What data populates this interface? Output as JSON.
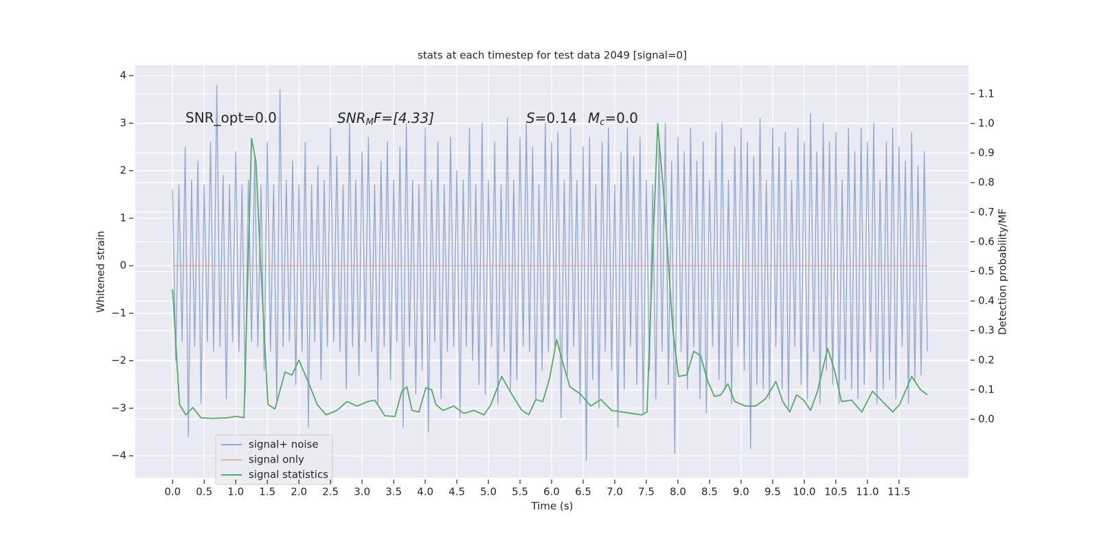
{
  "chart_data": {
    "type": "line",
    "title": "stats at each timestep for test data 2049 [signal=0]",
    "xlabel": "Time (s)",
    "ylabel": "Whitened strain",
    "y2label": "Detection probability/MF",
    "xlim": [
      -0.59,
      12.6
    ],
    "ylim": [
      -4.46,
      4.22
    ],
    "y2lim": [
      -0.197,
      1.197
    ],
    "xticks": [
      {
        "value": 0,
        "label": "0.0"
      },
      0.5,
      {
        "value": 1,
        "label": "1.0"
      },
      1.5,
      {
        "value": 2,
        "label": "2.0"
      },
      2.5,
      {
        "value": 3,
        "label": "3.0"
      },
      3.5,
      {
        "value": 4,
        "label": "4.0"
      },
      4.5,
      {
        "value": 5,
        "label": "5.0"
      },
      5.5,
      {
        "value": 6,
        "label": "6.0"
      },
      6.5,
      {
        "value": 7,
        "label": "7.0"
      },
      7.5,
      {
        "value": 8,
        "label": "8.0"
      },
      8.5,
      {
        "value": 9,
        "label": "9.0"
      },
      9.5,
      {
        "value": 10,
        "label": "10.0"
      },
      10.5,
      {
        "value": 11,
        "label": "11.0"
      },
      11.5
    ],
    "yticks": [
      {
        "value": -4,
        "label": "−4"
      },
      {
        "value": -3,
        "label": "−3"
      },
      {
        "value": -2,
        "label": "−2"
      },
      {
        "value": -1,
        "label": "−1"
      },
      0,
      1,
      2,
      3,
      4
    ],
    "y2ticks": [
      {
        "value": 0,
        "label": "0.0"
      },
      0.1,
      0.2,
      0.3,
      0.4,
      0.5,
      0.6,
      0.7,
      0.8,
      0.9,
      {
        "value": 1,
        "label": "1.0"
      },
      1.1
    ],
    "grid": true,
    "legend": "lower left",
    "annotations": [
      [
        "SNR_opt=0.0"
      ],
      [
        "SNR",
        "M",
        "F=[4.33]"
      ],
      [
        "S",
        "=0.14",
        "M",
        "c",
        "=0.0"
      ]
    ],
    "series": [
      {
        "name": "signal+ noise",
        "color": "#4c72b0",
        "alpha": 0.55,
        "x": [
          0,
          0.05,
          0.1,
          0.15,
          0.2,
          0.25,
          0.3,
          0.35,
          0.4,
          0.45,
          0.5,
          0.55,
          0.6,
          0.65,
          0.7,
          0.75,
          0.8,
          0.85,
          0.9,
          0.95,
          1,
          1.05,
          1.1,
          1.15,
          1.2,
          1.25,
          1.3,
          1.35,
          1.4,
          1.45,
          1.5,
          1.55,
          1.6,
          1.65,
          1.7,
          1.75,
          1.8,
          1.85,
          1.9,
          1.95,
          2,
          2.05,
          2.1,
          2.15,
          2.2,
          2.25,
          2.3,
          2.35,
          2.4,
          2.45,
          2.5,
          2.55,
          2.6,
          2.65,
          2.7,
          2.75,
          2.8,
          2.85,
          2.9,
          2.95,
          3,
          3.05,
          3.1,
          3.15,
          3.2,
          3.25,
          3.3,
          3.35,
          3.4,
          3.45,
          3.5,
          3.55,
          3.6,
          3.65,
          3.7,
          3.75,
          3.8,
          3.85,
          3.9,
          3.95,
          4,
          4.05,
          4.1,
          4.15,
          4.2,
          4.25,
          4.3,
          4.35,
          4.4,
          4.45,
          4.5,
          4.55,
          4.6,
          4.65,
          4.7,
          4.75,
          4.8,
          4.85,
          4.9,
          4.95,
          5,
          5.05,
          5.1,
          5.15,
          5.2,
          5.25,
          5.3,
          5.35,
          5.4,
          5.45,
          5.5,
          5.55,
          5.6,
          5.65,
          5.7,
          5.75,
          5.8,
          5.85,
          5.9,
          5.95,
          6,
          6.05,
          6.1,
          6.15,
          6.2,
          6.25,
          6.3,
          6.35,
          6.4,
          6.45,
          6.5,
          6.55,
          6.6,
          6.65,
          6.7,
          6.75,
          6.8,
          6.85,
          6.9,
          6.95,
          7,
          7.05,
          7.1,
          7.15,
          7.2,
          7.25,
          7.3,
          7.35,
          7.4,
          7.45,
          7.5,
          7.55,
          7.6,
          7.65,
          7.7,
          7.75,
          7.8,
          7.85,
          7.9,
          7.95,
          8,
          8.05,
          8.1,
          8.15,
          8.2,
          8.25,
          8.3,
          8.35,
          8.4,
          8.45,
          8.5,
          8.55,
          8.6,
          8.65,
          8.7,
          8.75,
          8.8,
          8.85,
          8.9,
          8.95,
          9,
          9.05,
          9.1,
          9.15,
          9.2,
          9.25,
          9.3,
          9.35,
          9.4,
          9.45,
          9.5,
          9.55,
          9.6,
          9.65,
          9.7,
          9.75,
          9.8,
          9.85,
          9.9,
          9.95,
          10,
          10.05,
          10.1,
          10.15,
          10.2,
          10.25,
          10.3,
          10.35,
          10.4,
          10.45,
          10.5,
          10.55,
          10.6,
          10.65,
          10.7,
          10.75,
          10.8,
          10.85,
          10.9,
          10.95,
          11,
          11.05,
          11.1,
          11.15,
          11.2,
          11.25,
          11.3,
          11.35,
          11.4,
          11.45,
          11.5,
          11.55,
          11.6,
          11.65,
          11.7,
          11.75,
          11.8,
          11.85,
          11.9,
          11.95
        ],
        "values": [
          1.6,
          -2.0,
          1.7,
          -1.6,
          2.5,
          -3.6,
          1.8,
          -1.7,
          2.2,
          -2.9,
          1.7,
          -1.6,
          2.6,
          -1.8,
          3.8,
          -1.7,
          1.9,
          -2.8,
          1.7,
          -1.6,
          2.4,
          -1.8,
          1.7,
          -2.7,
          1.8,
          -1.6,
          2.3,
          -1.7,
          1.7,
          -2.2,
          2.6,
          -1.8,
          1.7,
          -2.9,
          3.7,
          -1.7,
          1.8,
          -1.6,
          2.2,
          -2.5,
          1.7,
          -1.8,
          2.6,
          -3.4,
          1.7,
          -1.6,
          2.1,
          -2.4,
          1.8,
          -1.7,
          2.9,
          -1.6,
          2.3,
          -1.8,
          1.7,
          -2.6,
          3.0,
          -1.7,
          1.8,
          -2.3,
          2.4,
          -1.6,
          2.7,
          -1.8,
          1.7,
          -2.9,
          2.2,
          -1.7,
          2.6,
          -2.4,
          1.8,
          -1.6,
          2.5,
          -3.4,
          3.0,
          -1.7,
          1.8,
          -2.7,
          1.7,
          -2.2,
          2.9,
          -3.5,
          1.8,
          -1.6,
          2.6,
          -2.8,
          1.7,
          -1.8,
          2.7,
          -1.7,
          2.0,
          -3.2,
          1.8,
          -1.7,
          2.9,
          -2.0,
          1.7,
          -2.5,
          3.0,
          -2.7,
          1.8,
          -1.7,
          2.6,
          -2.9,
          1.7,
          -1.8,
          3.1,
          -2.6,
          1.8,
          -2.4,
          2.7,
          -1.7,
          3.0,
          -1.8,
          2.5,
          -2.8,
          1.7,
          -2.2,
          3.0,
          -1.8,
          2.6,
          -1.7,
          2.8,
          -3.2,
          1.8,
          -2.3,
          2.9,
          -1.7,
          1.8,
          -2.9,
          2.5,
          -4.1,
          2.7,
          -2.4,
          1.7,
          -3.0,
          2.6,
          -1.8,
          2.9,
          -2.2,
          1.7,
          -3.4,
          2.4,
          -2.6,
          2.9,
          -1.7,
          2.3,
          -2.5,
          2.7,
          -3.1,
          1.8,
          -2.2,
          1.7,
          -2.8,
          2.6,
          -1.8,
          3.0,
          -2.5,
          2.2,
          -3.95,
          2.7,
          -1.8,
          2.4,
          -2.6,
          2.9,
          -1.7,
          2.2,
          -2.8,
          2.6,
          -3.1,
          1.8,
          -1.7,
          2.8,
          -2.4,
          3.0,
          -2.6,
          1.8,
          -2.9,
          2.5,
          -1.7,
          2.9,
          -2.2,
          2.6,
          -3.85,
          2.3,
          -2.5,
          3.1,
          -2.6,
          1.8,
          -2.8,
          2.9,
          -1.7,
          2.5,
          -2.6,
          2.8,
          -3.0,
          1.8,
          -1.7,
          2.9,
          -2.5,
          2.6,
          -2.8,
          3.2,
          -1.8,
          2.4,
          -2.9,
          3.0,
          -2.2,
          2.6,
          -2.5,
          2.8,
          -2.9,
          1.8,
          -2.4,
          2.9,
          -2.6,
          2.4,
          -2.8,
          2.9,
          -2.5,
          2.6,
          -1.8,
          3.0,
          -2.9,
          1.8,
          -2.6,
          2.6,
          -2.4,
          2.9,
          -2.8,
          2.5,
          -1.7,
          2.2,
          -2.9,
          2.8,
          -2.4,
          2.1,
          -2.3,
          2.4,
          -1.8
        ]
      },
      {
        "name": "signal only",
        "color": "#dd8452",
        "alpha": 0.55,
        "x": [
          0,
          11.95
        ],
        "values": [
          0,
          0
        ]
      },
      {
        "name": "signal statistics",
        "color": "#55a868",
        "alpha": 1,
        "axis": "y2",
        "x": [
          0,
          0.11,
          0.21,
          0.32,
          0.45,
          0.64,
          0.86,
          1.02,
          1.13,
          1.25,
          1.32,
          1.4,
          1.51,
          1.62,
          1.78,
          1.89,
          2.0,
          2.16,
          2.29,
          2.43,
          2.6,
          2.76,
          2.92,
          3.09,
          3.2,
          3.36,
          3.52,
          3.63,
          3.71,
          3.79,
          3.9,
          4.01,
          4.1,
          4.17,
          4.28,
          4.45,
          4.61,
          4.77,
          4.93,
          5.04,
          5.21,
          5.37,
          5.53,
          5.64,
          5.75,
          5.86,
          5.97,
          6.08,
          6.18,
          6.29,
          6.46,
          6.62,
          6.78,
          6.95,
          7.11,
          7.27,
          7.43,
          7.51,
          7.6,
          7.68,
          7.79,
          7.92,
          8.01,
          8.14,
          8.25,
          8.36,
          8.47,
          8.58,
          8.68,
          8.79,
          8.9,
          9.07,
          9.23,
          9.39,
          9.55,
          9.66,
          9.77,
          9.88,
          9.99,
          10.1,
          10.21,
          10.37,
          10.48,
          10.59,
          10.75,
          10.91,
          11.08,
          11.24,
          11.4,
          11.51,
          11.7,
          11.84,
          11.95
        ],
        "values": [
          0.44,
          0.05,
          0.015,
          0.04,
          0.005,
          0.003,
          0.005,
          0.01,
          0.005,
          0.95,
          0.87,
          0.5,
          0.05,
          0.035,
          0.16,
          0.15,
          0.2,
          0.12,
          0.05,
          0.015,
          0.03,
          0.06,
          0.045,
          0.06,
          0.065,
          0.012,
          0.01,
          0.095,
          0.11,
          0.03,
          0.025,
          0.107,
          0.1,
          0.05,
          0.03,
          0.045,
          0.02,
          0.03,
          0.015,
          0.05,
          0.145,
          0.085,
          0.03,
          0.016,
          0.067,
          0.06,
          0.14,
          0.27,
          0.19,
          0.11,
          0.085,
          0.045,
          0.067,
          0.03,
          0.025,
          0.02,
          0.015,
          0.025,
          0.56,
          1.0,
          0.72,
          0.3,
          0.145,
          0.15,
          0.23,
          0.215,
          0.13,
          0.077,
          0.083,
          0.12,
          0.06,
          0.045,
          0.045,
          0.07,
          0.128,
          0.06,
          0.025,
          0.083,
          0.065,
          0.03,
          0.095,
          0.24,
          0.165,
          0.06,
          0.065,
          0.025,
          0.095,
          0.06,
          0.025,
          0.05,
          0.145,
          0.1,
          0.083
        ]
      }
    ]
  }
}
